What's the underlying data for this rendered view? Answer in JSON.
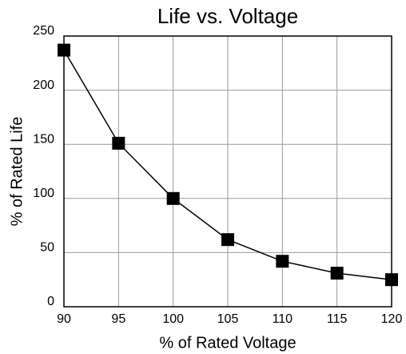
{
  "chart_data": {
    "type": "line",
    "title": "Life vs. Voltage",
    "x_label": "% of Rated Voltage",
    "y_label": "% of Rated Life",
    "x": [
      90,
      95,
      100,
      105,
      110,
      115,
      120
    ],
    "series": [
      {
        "name": "Life",
        "color": "#000000",
        "values": [
          237,
          151,
          100,
          62,
          42,
          31,
          25
        ]
      }
    ],
    "xlim": [
      90,
      120
    ],
    "xticks": [
      90,
      95,
      100,
      105,
      110,
      115,
      120
    ],
    "ylim": [
      0,
      250
    ],
    "yticks": [
      0,
      50,
      100,
      150,
      200,
      250
    ],
    "grid": true,
    "marker": "square"
  }
}
